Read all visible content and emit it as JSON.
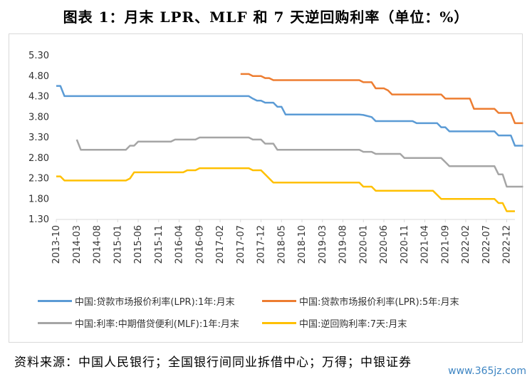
{
  "title": "图表 1：月末 LPR、MLF 和 7 天逆回购利率（单位：%）",
  "source": "资料来源：中国人民银行；全国银行间同业拆借中心；万得；中银证券",
  "watermark": "www.365jz.com",
  "chart_data": {
    "type": "line",
    "title": "图表 1：月末 LPR、MLF 和 7 天逆回购利率（单位：%）",
    "xlabel": "",
    "ylabel": "",
    "ylim": [
      1.3,
      5.3
    ],
    "y_ticks": [
      "5.30",
      "4.80",
      "4.30",
      "3.80",
      "3.30",
      "2.80",
      "2.30",
      "1.80",
      "1.30"
    ],
    "x_ticks": [
      "2013-10",
      "2014-03",
      "2014-08",
      "2015-01",
      "2015-06",
      "2015-11",
      "2016-04",
      "2016-09",
      "2017-02",
      "2017-07",
      "2017-12",
      "2018-05",
      "2018-10",
      "2019-03",
      "2019-08",
      "2020-01",
      "2020-06",
      "2020-11",
      "2021-04",
      "2021-09",
      "2022-02",
      "2022-07",
      "2022-12"
    ],
    "x_range": [
      "2013-10",
      "2023-02"
    ],
    "legend_position": "bottom",
    "grid": false,
    "series": [
      {
        "name": "中国:贷款市场报价利率(LPR):1年:月末",
        "color": "#5B9BD5",
        "points": [
          [
            "2013-10",
            4.56
          ],
          [
            "2013-11",
            4.56
          ],
          [
            "2013-12",
            4.31
          ],
          [
            "2017-07",
            4.31
          ],
          [
            "2017-09",
            4.31
          ],
          [
            "2017-10",
            4.25
          ],
          [
            "2017-11",
            4.2
          ],
          [
            "2017-12",
            4.2
          ],
          [
            "2018-01",
            4.15
          ],
          [
            "2018-03",
            4.15
          ],
          [
            "2018-04",
            4.05
          ],
          [
            "2018-05",
            4.05
          ],
          [
            "2018-06",
            3.86
          ],
          [
            "2019-07",
            3.86
          ],
          [
            "2019-12",
            3.86
          ],
          [
            "2020-01",
            3.85
          ],
          [
            "2020-03",
            3.8
          ],
          [
            "2020-04",
            3.7
          ],
          [
            "2021-01",
            3.7
          ],
          [
            "2021-02",
            3.65
          ],
          [
            "2021-07",
            3.65
          ],
          [
            "2021-08",
            3.55
          ],
          [
            "2021-09",
            3.55
          ],
          [
            "2021-10",
            3.45
          ],
          [
            "2022-09",
            3.45
          ],
          [
            "2022-10",
            3.35
          ],
          [
            "2023-01",
            3.35
          ],
          [
            "2023-02",
            3.1
          ],
          [
            "2023-04",
            3.1
          ]
        ]
      },
      {
        "name": "中国:贷款市场报价利率(LPR):5年:月末",
        "color": "#ED7D31",
        "points": [
          [
            "2017-07",
            4.85
          ],
          [
            "2017-09",
            4.85
          ],
          [
            "2017-10",
            4.8
          ],
          [
            "2017-12",
            4.8
          ],
          [
            "2018-01",
            4.75
          ],
          [
            "2018-02",
            4.75
          ],
          [
            "2018-03",
            4.7
          ],
          [
            "2019-12",
            4.7
          ],
          [
            "2020-01",
            4.65
          ],
          [
            "2020-03",
            4.65
          ],
          [
            "2020-04",
            4.5
          ],
          [
            "2020-06",
            4.5
          ],
          [
            "2020-07",
            4.45
          ],
          [
            "2020-08",
            4.35
          ],
          [
            "2021-08",
            4.35
          ],
          [
            "2021-09",
            4.25
          ],
          [
            "2022-03",
            4.25
          ],
          [
            "2022-04",
            4.0
          ],
          [
            "2022-09",
            4.0
          ],
          [
            "2022-10",
            3.9
          ],
          [
            "2023-01",
            3.9
          ],
          [
            "2023-02",
            3.65
          ],
          [
            "2023-04",
            3.65
          ]
        ]
      },
      {
        "name": "中国:利率:中期借贷便利(MLF):1年:月末",
        "color": "#A5A5A5",
        "points": [
          [
            "2014-03",
            3.25
          ],
          [
            "2014-04",
            3.0
          ],
          [
            "2015-03",
            3.0
          ],
          [
            "2015-04",
            3.1
          ],
          [
            "2015-05",
            3.1
          ],
          [
            "2015-06",
            3.2
          ],
          [
            "2016-02",
            3.2
          ],
          [
            "2016-03",
            3.25
          ],
          [
            "2016-08",
            3.25
          ],
          [
            "2016-09",
            3.3
          ],
          [
            "2017-07",
            3.3
          ],
          [
            "2017-09",
            3.3
          ],
          [
            "2017-10",
            3.25
          ],
          [
            "2017-12",
            3.25
          ],
          [
            "2018-01",
            3.15
          ],
          [
            "2018-03",
            3.15
          ],
          [
            "2018-04",
            3.0
          ],
          [
            "2019-12",
            3.0
          ],
          [
            "2020-01",
            2.95
          ],
          [
            "2020-03",
            2.95
          ],
          [
            "2020-04",
            2.9
          ],
          [
            "2020-10",
            2.9
          ],
          [
            "2020-11",
            2.8
          ],
          [
            "2021-08",
            2.8
          ],
          [
            "2021-09",
            2.7
          ],
          [
            "2021-10",
            2.6
          ],
          [
            "2022-09",
            2.6
          ],
          [
            "2022-10",
            2.4
          ],
          [
            "2022-11",
            2.4
          ],
          [
            "2022-12",
            2.1
          ],
          [
            "2023-04",
            2.1
          ]
        ]
      },
      {
        "name": "中国:逆回购利率:7天:月末",
        "color": "#FFC000",
        "points": [
          [
            "2013-10",
            2.35
          ],
          [
            "2013-11",
            2.35
          ],
          [
            "2013-12",
            2.25
          ],
          [
            "2015-03",
            2.25
          ],
          [
            "2015-04",
            2.3
          ],
          [
            "2015-05",
            2.45
          ],
          [
            "2016-05",
            2.45
          ],
          [
            "2016-06",
            2.5
          ],
          [
            "2016-08",
            2.5
          ],
          [
            "2016-09",
            2.55
          ],
          [
            "2017-07",
            2.55
          ],
          [
            "2017-09",
            2.55
          ],
          [
            "2017-10",
            2.5
          ],
          [
            "2017-12",
            2.5
          ],
          [
            "2018-01",
            2.4
          ],
          [
            "2018-03",
            2.2
          ],
          [
            "2019-12",
            2.2
          ],
          [
            "2020-01",
            2.1
          ],
          [
            "2020-03",
            2.1
          ],
          [
            "2020-04",
            2.0
          ],
          [
            "2021-06",
            2.0
          ],
          [
            "2021-07",
            1.9
          ],
          [
            "2021-08",
            1.8
          ],
          [
            "2022-09",
            1.8
          ],
          [
            "2022-10",
            1.7
          ],
          [
            "2022-11",
            1.7
          ],
          [
            "2022-12",
            1.5
          ],
          [
            "2023-02",
            1.5
          ]
        ]
      }
    ]
  }
}
